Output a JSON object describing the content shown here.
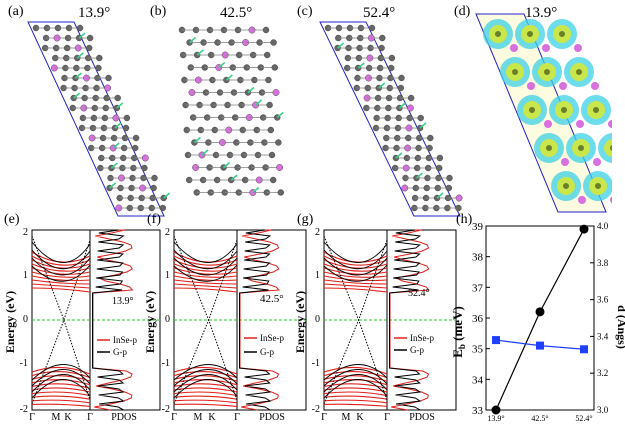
{
  "top_panels": [
    {
      "label": "(a)",
      "angle": "13.9°"
    },
    {
      "label": "(b)",
      "angle": "42.5°"
    },
    {
      "label": "(c)",
      "angle": "52.4°"
    },
    {
      "label": "(d)",
      "angle": "13.9°"
    }
  ],
  "band_panels": [
    {
      "label": "(e)",
      "angle": "13.9°",
      "ylabel": "Energy (eV)",
      "xticks": [
        "Γ",
        "M",
        "K",
        "Γ"
      ],
      "pdos_label": "PDOS",
      "legend": [
        "InSe-p",
        "G-p"
      ]
    },
    {
      "label": "(f)",
      "angle": "42.5°",
      "ylabel": "Energy (eV)",
      "xticks": [
        "Γ",
        "M",
        "K",
        "Γ"
      ],
      "pdos_label": "PDOS",
      "legend": [
        "InSe-p",
        "G-p"
      ]
    },
    {
      "label": "(g)",
      "angle": "52.4°",
      "ylabel": "Energy (eV)",
      "xticks": [
        "Γ",
        "M",
        "K",
        "Γ"
      ],
      "pdos_label": "PDOS",
      "legend": [
        "InSe-p",
        "G-p"
      ]
    }
  ],
  "yticks_band": [
    "2",
    "1",
    "0",
    "-1",
    "-2"
  ],
  "colors": {
    "insep": "#e0201b",
    "gp": "#000000",
    "fermi": "#22cc22",
    "cell": "#2222cc",
    "blue_series": "#1f3fff"
  },
  "chart_data": {
    "label": "(h)",
    "type": "line",
    "categories": [
      "13.9°",
      "42.5°",
      "52.4°"
    ],
    "series": [
      {
        "name": "Eb",
        "axis": "left",
        "values": [
          33.0,
          36.2,
          38.9
        ],
        "marker": "circle",
        "color": "#000000"
      },
      {
        "name": "d",
        "axis": "right",
        "values": [
          3.38,
          3.35,
          3.33
        ],
        "marker": "square",
        "color": "#1f3fff"
      }
    ],
    "ylabel_left": "E",
    "ylabel_left_sub": "b",
    "ylabel_left_unit": " (meV)",
    "ylabel_right": "d (Angs)",
    "ylim_left": [
      33,
      39
    ],
    "ylim_right": [
      3.0,
      4.0
    ],
    "yticks_left": [
      "33",
      "34",
      "35",
      "36",
      "37",
      "38",
      "39"
    ],
    "yticks_right": [
      "3.0",
      "3.2",
      "3.4",
      "3.6",
      "3.8",
      "4.0"
    ]
  }
}
